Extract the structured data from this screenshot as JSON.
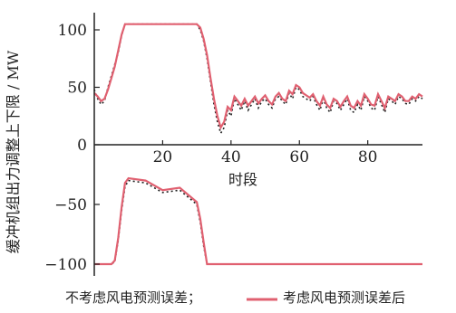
{
  "chart_data": {
    "type": "line",
    "title": "",
    "xlabel": "时段",
    "ylabel": "缓冲机组出力调整上下限 / MW",
    "xlim": [
      0,
      96
    ],
    "ylim": [
      -110,
      110
    ],
    "x_ticks": [
      20,
      40,
      60,
      80
    ],
    "y_ticks": [
      100,
      50,
      0,
      -50,
      -100
    ],
    "x_tick_labels": [
      "20",
      "40",
      "60",
      "80"
    ],
    "y_tick_labels": [
      "100",
      "50",
      "0",
      "−50",
      "−100"
    ],
    "grid": false,
    "legend_position": "bottom",
    "legend": [
      {
        "label": "不考虑风电预测误差；",
        "color": "#222222",
        "style": "dotted"
      },
      {
        "label": "考虑风电预测误差后",
        "color": "#e06070",
        "style": "solid"
      }
    ],
    "series": [
      {
        "name": "不考虑风电预测误差；",
        "color": "#222222",
        "x": [
          0,
          1,
          2,
          3,
          4,
          5,
          6,
          7,
          8,
          9,
          10,
          15,
          20,
          25,
          30,
          31,
          32,
          33,
          34,
          35,
          36,
          37,
          38,
          39,
          40,
          41,
          42,
          43,
          44,
          45,
          46,
          47,
          48,
          49,
          50,
          51,
          52,
          53,
          54,
          55,
          56,
          57,
          58,
          59,
          60,
          61,
          62,
          63,
          64,
          65,
          66,
          67,
          68,
          69,
          70,
          71,
          72,
          73,
          74,
          75,
          76,
          77,
          78,
          79,
          80,
          81,
          82,
          83,
          84,
          85,
          86,
          87,
          88,
          89,
          90,
          91,
          92,
          93,
          94,
          95,
          96
        ],
        "upper": [
          48,
          40,
          35,
          38,
          50,
          60,
          70,
          80,
          95,
          105,
          105,
          105,
          105,
          105,
          105,
          100,
          90,
          75,
          55,
          35,
          20,
          10,
          15,
          30,
          25,
          40,
          35,
          30,
          38,
          30,
          35,
          40,
          32,
          38,
          40,
          35,
          32,
          40,
          42,
          38,
          35,
          45,
          40,
          50,
          48,
          42,
          40,
          38,
          42,
          35,
          30,
          40,
          32,
          28,
          38,
          36,
          30,
          35,
          40,
          30,
          28,
          35,
          30,
          42,
          38,
          32,
          30,
          42,
          35,
          28,
          40,
          38,
          35,
          42,
          40,
          36,
          35,
          40,
          38,
          42,
          40
        ],
        "lower": [
          -100,
          -100,
          -100,
          -100,
          -100,
          -100,
          -98,
          -80,
          -55,
          -35,
          -30,
          -32,
          -40,
          -38,
          -50,
          -65,
          -85,
          -100,
          -100,
          -100,
          -100,
          -100,
          -100,
          -100,
          -100,
          -100,
          -100,
          -100,
          -100,
          -100,
          -100,
          -100,
          -100,
          -100,
          -100,
          -100,
          -100,
          -100,
          -100,
          -100,
          -100,
          -100,
          -100,
          -100,
          -100,
          -100,
          -100,
          -100,
          -100,
          -100,
          -100,
          -100,
          -100,
          -100,
          -100,
          -100,
          -100,
          -100,
          -100,
          -100,
          -100,
          -100,
          -100,
          -100,
          -100,
          -100,
          -100,
          -100,
          -100,
          -100,
          -100,
          -100,
          -100,
          -100,
          -100,
          -100,
          -100,
          -100,
          -100,
          -100,
          -100
        ]
      },
      {
        "name": "考虑风电预测误差后",
        "color": "#e06070",
        "x": [
          0,
          1,
          2,
          3,
          4,
          5,
          6,
          7,
          8,
          9,
          10,
          15,
          20,
          25,
          30,
          31,
          32,
          33,
          34,
          35,
          36,
          37,
          38,
          39,
          40,
          41,
          42,
          43,
          44,
          45,
          46,
          47,
          48,
          49,
          50,
          51,
          52,
          53,
          54,
          55,
          56,
          57,
          58,
          59,
          60,
          61,
          62,
          63,
          64,
          65,
          66,
          67,
          68,
          69,
          70,
          71,
          72,
          73,
          74,
          75,
          76,
          77,
          78,
          79,
          80,
          81,
          82,
          83,
          84,
          85,
          86,
          87,
          88,
          89,
          90,
          91,
          92,
          93,
          94,
          95,
          96
        ],
        "upper": [
          45,
          42,
          38,
          40,
          48,
          58,
          68,
          82,
          96,
          105,
          105,
          105,
          105,
          105,
          105,
          102,
          92,
          78,
          58,
          40,
          25,
          15,
          20,
          33,
          30,
          42,
          38,
          34,
          40,
          34,
          38,
          42,
          36,
          40,
          43,
          38,
          35,
          42,
          45,
          40,
          38,
          47,
          44,
          52,
          50,
          45,
          43,
          41,
          44,
          38,
          34,
          42,
          35,
          32,
          40,
          38,
          33,
          38,
          42,
          34,
          32,
          38,
          34,
          44,
          40,
          35,
          34,
          44,
          38,
          32,
          42,
          40,
          38,
          44,
          42,
          38,
          38,
          42,
          40,
          44,
          42
        ],
        "lower": [
          -100,
          -100,
          -100,
          -100,
          -100,
          -100,
          -97,
          -78,
          -52,
          -32,
          -28,
          -30,
          -38,
          -36,
          -48,
          -62,
          -82,
          -100,
          -100,
          -100,
          -100,
          -100,
          -100,
          -100,
          -100,
          -100,
          -100,
          -100,
          -100,
          -100,
          -100,
          -100,
          -100,
          -100,
          -100,
          -100,
          -100,
          -100,
          -100,
          -100,
          -100,
          -100,
          -100,
          -100,
          -100,
          -100,
          -100,
          -100,
          -100,
          -100,
          -100,
          -100,
          -100,
          -100,
          -100,
          -100,
          -100,
          -100,
          -100,
          -100,
          -100,
          -100,
          -100,
          -100,
          -100,
          -100,
          -100,
          -100,
          -100,
          -100,
          -100,
          -100,
          -100,
          -100,
          -100,
          -100,
          -100,
          -100,
          -100,
          -100,
          -100
        ]
      }
    ]
  }
}
